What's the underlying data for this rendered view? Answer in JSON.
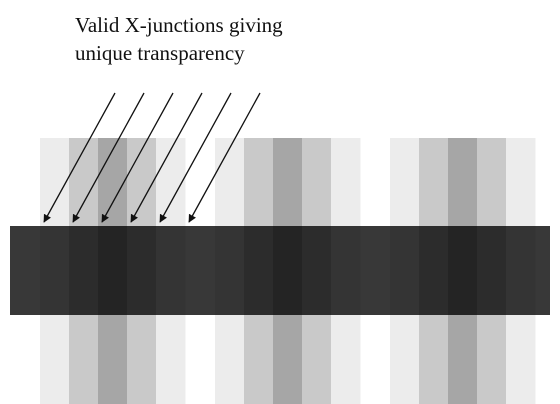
{
  "caption": {
    "lines": [
      "Valid X-junctions giving",
      "unique transparency"
    ]
  }
}
